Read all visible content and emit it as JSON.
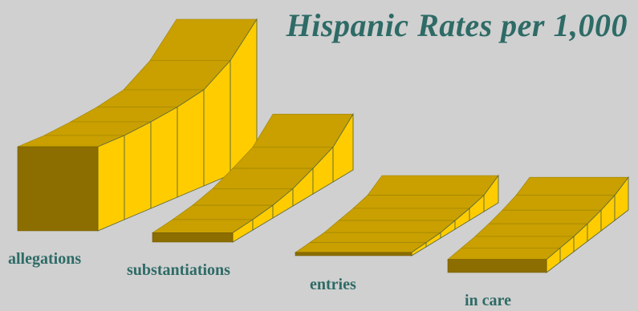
{
  "chart_data": {
    "type": "3d-ribbon",
    "title": "Hispanic Rates per 1,000",
    "categories": [
      "allegations",
      "substantiations",
      "entries",
      "in care"
    ],
    "x": [
      "1",
      "2",
      "3",
      "4",
      "5",
      "6",
      "7"
    ],
    "series": [
      {
        "values": [
          70,
          70,
          72,
          75,
          80,
          95,
          120
        ]
      },
      {
        "values": [
          8,
          9,
          11,
          15,
          22,
          30,
          48
        ]
      },
      {
        "values": [
          3,
          4,
          5,
          8,
          11,
          15,
          25
        ]
      },
      {
        "values": [
          12,
          13,
          14,
          16,
          19,
          23,
          30
        ]
      }
    ],
    "colors": {
      "top": "#c9a000",
      "front": "#ffcc00",
      "side": "#8c6e00",
      "background": "#d0d0d0",
      "title": "#2e6b66",
      "divider": "#5f6a3a"
    }
  }
}
